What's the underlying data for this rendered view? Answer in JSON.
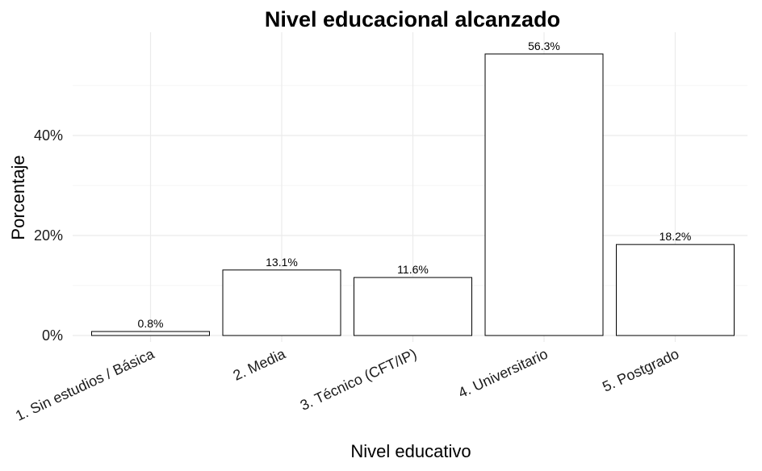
{
  "chart_data": {
    "type": "bar",
    "title": "Nivel educacional alcanzado",
    "xlabel": "Nivel educativo",
    "ylabel": "Porcentaje",
    "categories": [
      "1. Sin estudios / Básica",
      "2. Media",
      "3. Técnico (CFT/IP)",
      "4. Universitario",
      "5. Postgrado"
    ],
    "values": [
      0.8,
      13.1,
      11.6,
      56.3,
      18.2
    ],
    "data_labels": [
      "0.8%",
      "13.1%",
      "11.6%",
      "56.3%",
      "18.2%"
    ],
    "y_ticks": [
      0,
      20,
      40
    ],
    "y_tick_labels": [
      "0%",
      "20%",
      "40%"
    ],
    "ylim": [
      0,
      59
    ],
    "grid": true,
    "legend": "none",
    "colors": {
      "bar_fill": "#ffffff",
      "bar_stroke": "#000000",
      "grid": "#ebebeb"
    }
  }
}
